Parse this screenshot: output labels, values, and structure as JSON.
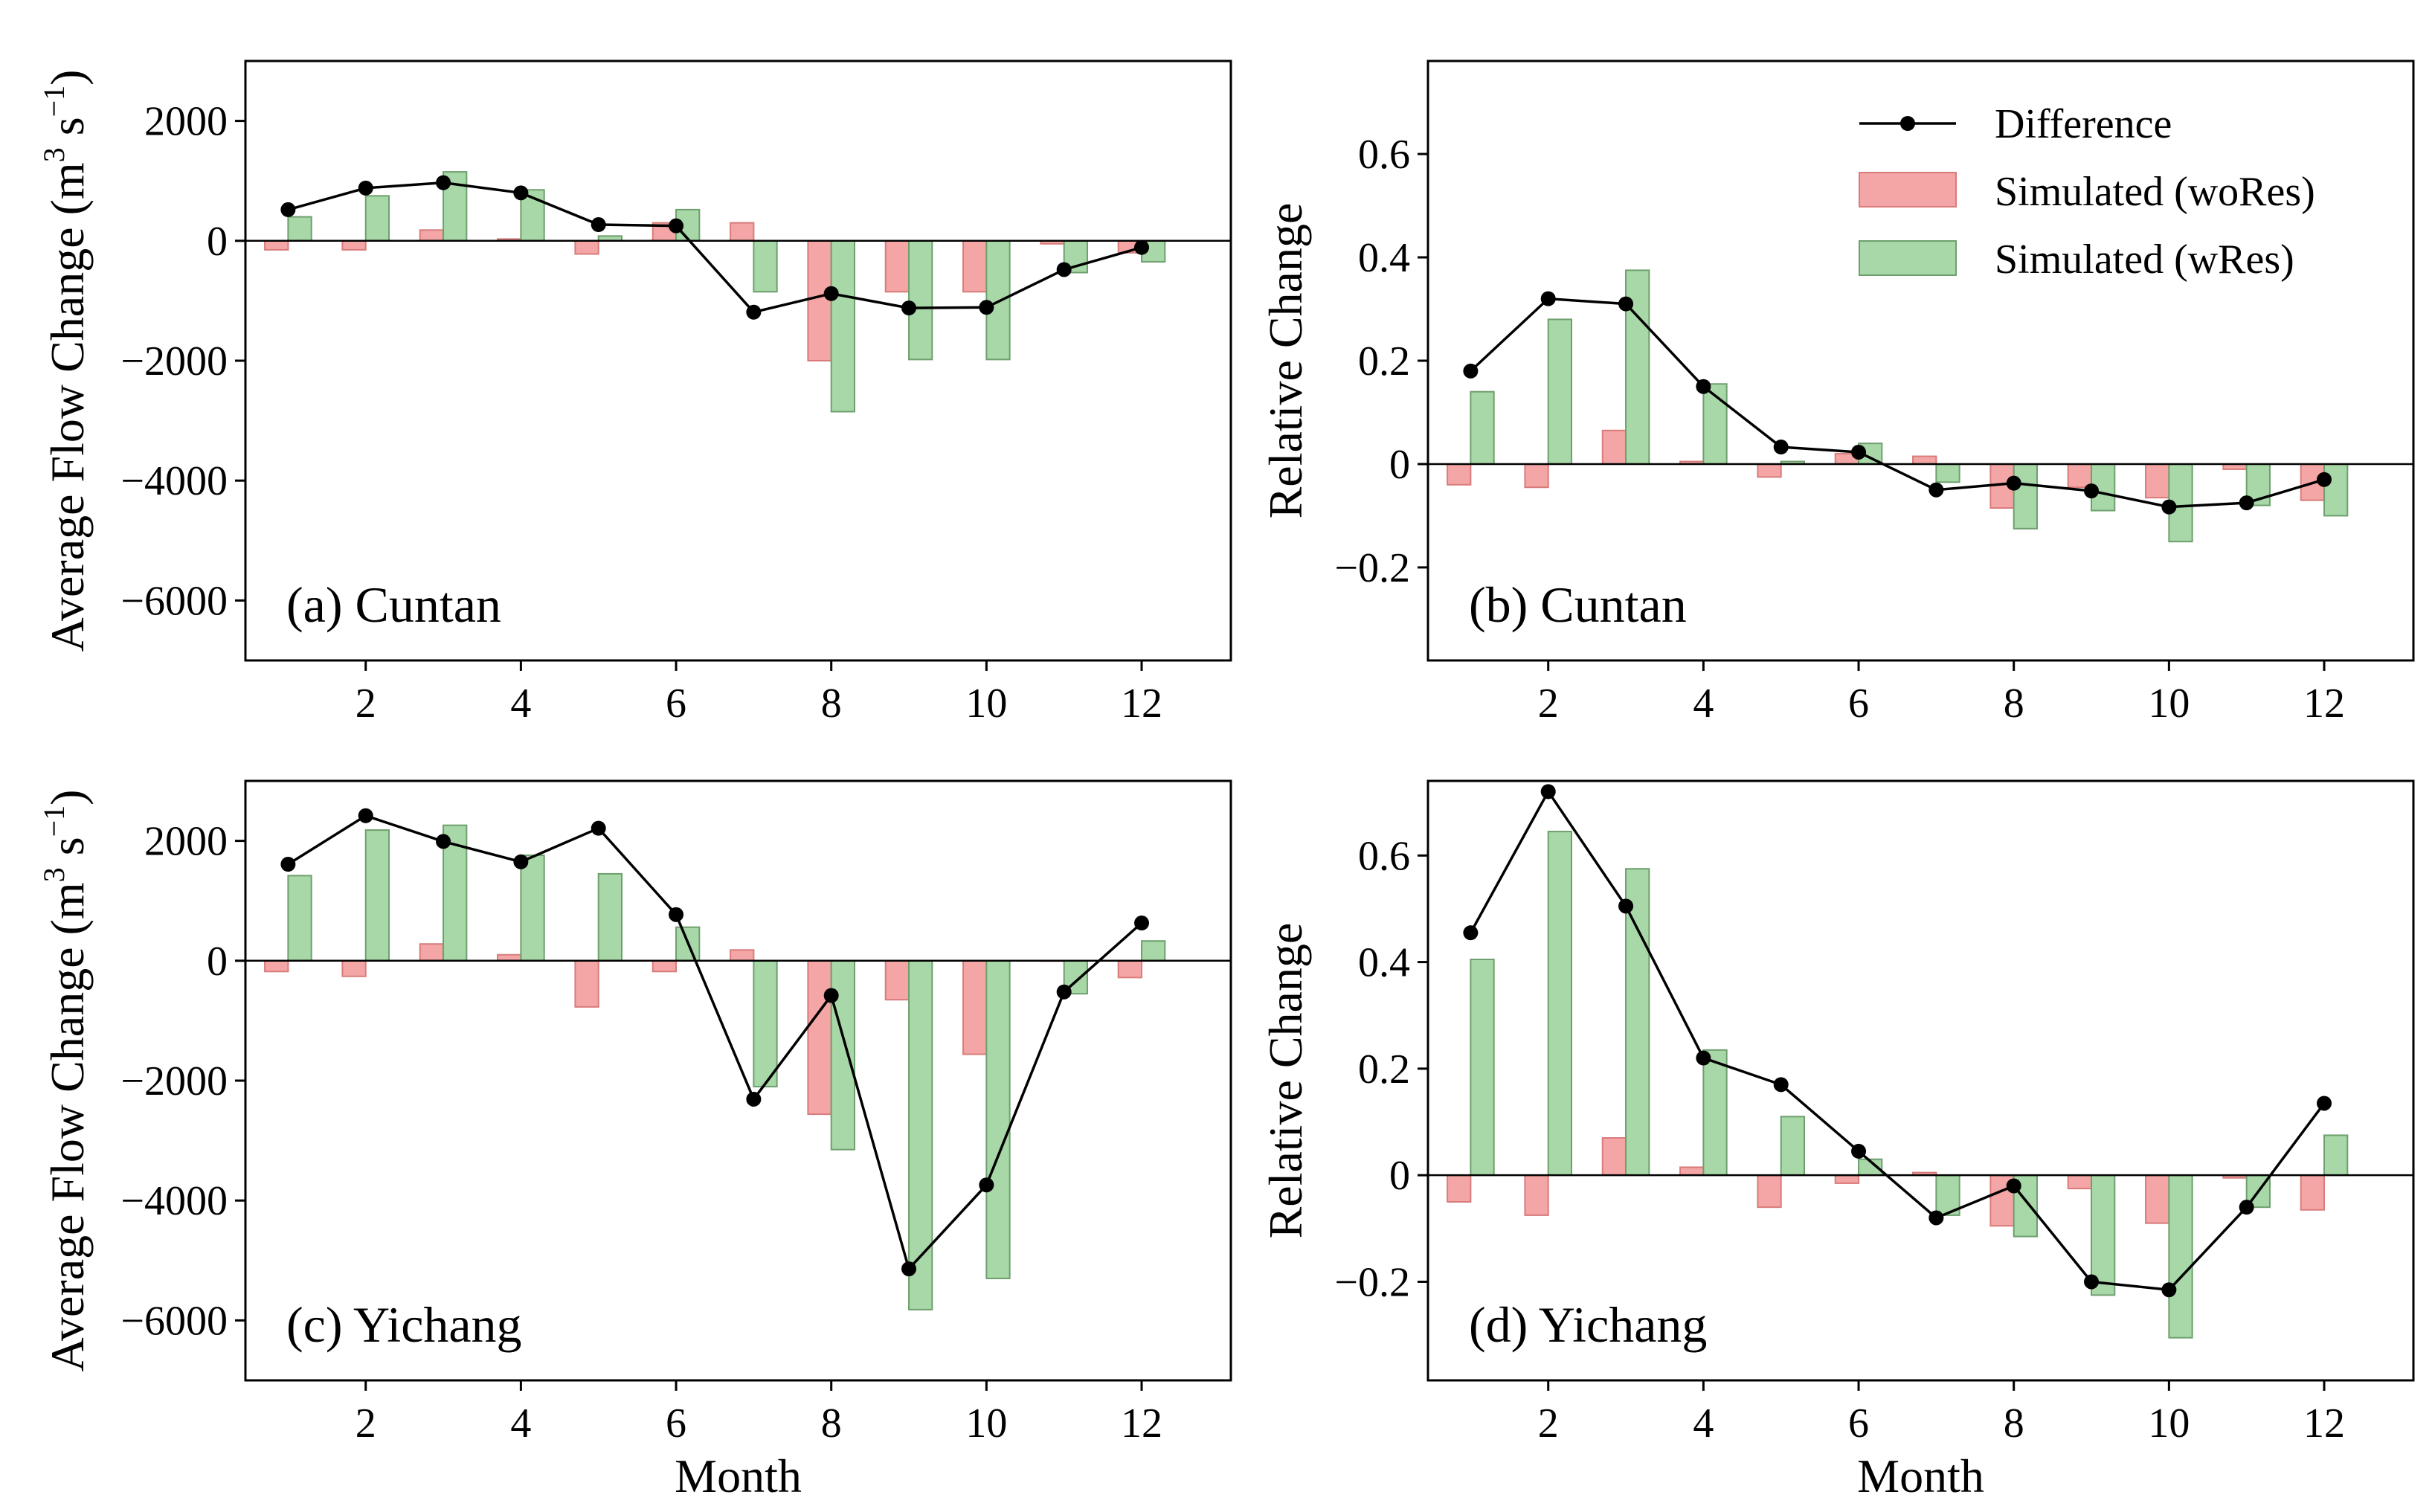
{
  "figure": {
    "legend": {
      "difference": "Difference",
      "wores": "Simulated (woRes)",
      "wres": "Simulated (wRes)"
    },
    "colors": {
      "wores_fill": "#f4a6a6",
      "wores_edge": "#d97b7b",
      "wres_fill": "#a8d8a8",
      "wres_edge": "#6e9f6e",
      "line": "#000000"
    },
    "flow_unit": {
      "prefix": "Average Flow Change  (m",
      "sup1": "3",
      "middle": " s",
      "sup2": "−1",
      "suffix": ")"
    }
  },
  "chart_data": [
    {
      "id": "a",
      "type": "bar",
      "title": "(a) Cuntan",
      "xlabel": "",
      "ylabel": "Average Flow Change  (m3 s−1)",
      "ylim": [
        -7000,
        3000
      ],
      "yticks": [
        2000,
        0,
        -2000,
        -4000,
        -6000
      ],
      "ytick_labels": [
        "2000",
        "0",
        "−2000",
        "−4000",
        "−6000"
      ],
      "xlim": [
        0.45,
        13.15
      ],
      "xticks": [
        2,
        4,
        6,
        8,
        10,
        12
      ],
      "xtick_labels": [
        "2",
        "4",
        "6",
        "8",
        "10",
        "12"
      ],
      "months": [
        1,
        2,
        3,
        4,
        5,
        6,
        7,
        8,
        9,
        10,
        11,
        12
      ],
      "series": [
        {
          "name": "Simulated (woRes)",
          "values": [
            -150,
            -150,
            180,
            30,
            -220,
            300,
            300,
            -2000,
            -850,
            -850,
            -50,
            -200
          ]
        },
        {
          "name": "Simulated (wRes)",
          "values": [
            400,
            750,
            1150,
            850,
            80,
            520,
            -850,
            -2850,
            -1980,
            -1980,
            -530,
            -350
          ]
        },
        {
          "name": "Difference",
          "values": [
            520,
            880,
            970,
            800,
            270,
            250,
            -1190,
            -880,
            -1120,
            -1110,
            -480,
            -110
          ]
        }
      ]
    },
    {
      "id": "b",
      "type": "bar",
      "title": "(b) Cuntan",
      "xlabel": "",
      "ylabel": "Relative Change",
      "ylim": [
        -0.38,
        0.78
      ],
      "yticks": [
        0.6,
        0.4,
        0.2,
        0,
        -0.2
      ],
      "ytick_labels": [
        "0.6",
        "0.4",
        "0.2",
        "0",
        "−0.2"
      ],
      "xlim": [
        0.45,
        13.15
      ],
      "xticks": [
        2,
        4,
        6,
        8,
        10,
        12
      ],
      "xtick_labels": [
        "2",
        "4",
        "6",
        "8",
        "10",
        "12"
      ],
      "months": [
        1,
        2,
        3,
        4,
        5,
        6,
        7,
        8,
        9,
        10,
        11,
        12
      ],
      "series": [
        {
          "name": "Simulated (woRes)",
          "values": [
            -0.04,
            -0.045,
            0.065,
            0.005,
            -0.025,
            0.02,
            0.015,
            -0.085,
            -0.045,
            -0.065,
            -0.01,
            -0.07
          ]
        },
        {
          "name": "Simulated (wRes)",
          "values": [
            0.14,
            0.28,
            0.375,
            0.155,
            0.005,
            0.04,
            -0.035,
            -0.125,
            -0.09,
            -0.15,
            -0.08,
            -0.1
          ]
        },
        {
          "name": "Difference",
          "values": [
            0.18,
            0.32,
            0.31,
            0.15,
            0.033,
            0.023,
            -0.05,
            -0.037,
            -0.052,
            -0.083,
            -0.075,
            -0.03
          ]
        }
      ]
    },
    {
      "id": "c",
      "type": "bar",
      "title": "(c) Yichang",
      "xlabel": "Month",
      "ylabel": "Average Flow Change  (m3 s−1)",
      "ylim": [
        -7000,
        3000
      ],
      "yticks": [
        2000,
        0,
        -2000,
        -4000,
        -6000
      ],
      "ytick_labels": [
        "2000",
        "0",
        "−2000",
        "−4000",
        "−6000"
      ],
      "xlim": [
        0.45,
        13.15
      ],
      "xticks": [
        2,
        4,
        6,
        8,
        10,
        12
      ],
      "xtick_labels": [
        "2",
        "4",
        "6",
        "8",
        "10",
        "12"
      ],
      "months": [
        1,
        2,
        3,
        4,
        5,
        6,
        7,
        8,
        9,
        10,
        11,
        12
      ],
      "series": [
        {
          "name": "Simulated (woRes)",
          "values": [
            -180,
            -260,
            280,
            100,
            -770,
            -180,
            180,
            -2560,
            -650,
            -1560,
            0,
            -280
          ]
        },
        {
          "name": "Simulated (wRes)",
          "values": [
            1420,
            2180,
            2260,
            1760,
            1450,
            560,
            -2100,
            -3150,
            -5820,
            -5300,
            -550,
            330
          ]
        },
        {
          "name": "Difference",
          "values": [
            1610,
            2420,
            1990,
            1650,
            2210,
            770,
            -2310,
            -580,
            -5140,
            -3740,
            -520,
            630
          ]
        }
      ]
    },
    {
      "id": "d",
      "type": "bar",
      "title": "(d) Yichang",
      "xlabel": "Month",
      "ylabel": "Relative Change",
      "ylim": [
        -0.385,
        0.74
      ],
      "yticks": [
        0.6,
        0.4,
        0.2,
        0,
        -0.2
      ],
      "ytick_labels": [
        "0.6",
        "0.4",
        "0.2",
        "0",
        "−0.2"
      ],
      "xlim": [
        0.45,
        13.15
      ],
      "xticks": [
        2,
        4,
        6,
        8,
        10,
        12
      ],
      "xtick_labels": [
        "2",
        "4",
        "6",
        "8",
        "10",
        "12"
      ],
      "months": [
        1,
        2,
        3,
        4,
        5,
        6,
        7,
        8,
        9,
        10,
        11,
        12
      ],
      "series": [
        {
          "name": "Simulated (woRes)",
          "values": [
            -0.05,
            -0.075,
            0.07,
            0.015,
            -0.06,
            -0.015,
            0.005,
            -0.095,
            -0.025,
            -0.09,
            -0.005,
            -0.065
          ]
        },
        {
          "name": "Simulated (wRes)",
          "values": [
            0.405,
            0.645,
            0.575,
            0.235,
            0.11,
            0.03,
            -0.075,
            -0.115,
            -0.225,
            -0.305,
            -0.06,
            0.075
          ]
        },
        {
          "name": "Difference",
          "values": [
            0.455,
            0.72,
            0.505,
            0.22,
            0.17,
            0.045,
            -0.08,
            -0.02,
            -0.2,
            -0.215,
            -0.06,
            0.135
          ]
        }
      ]
    }
  ]
}
